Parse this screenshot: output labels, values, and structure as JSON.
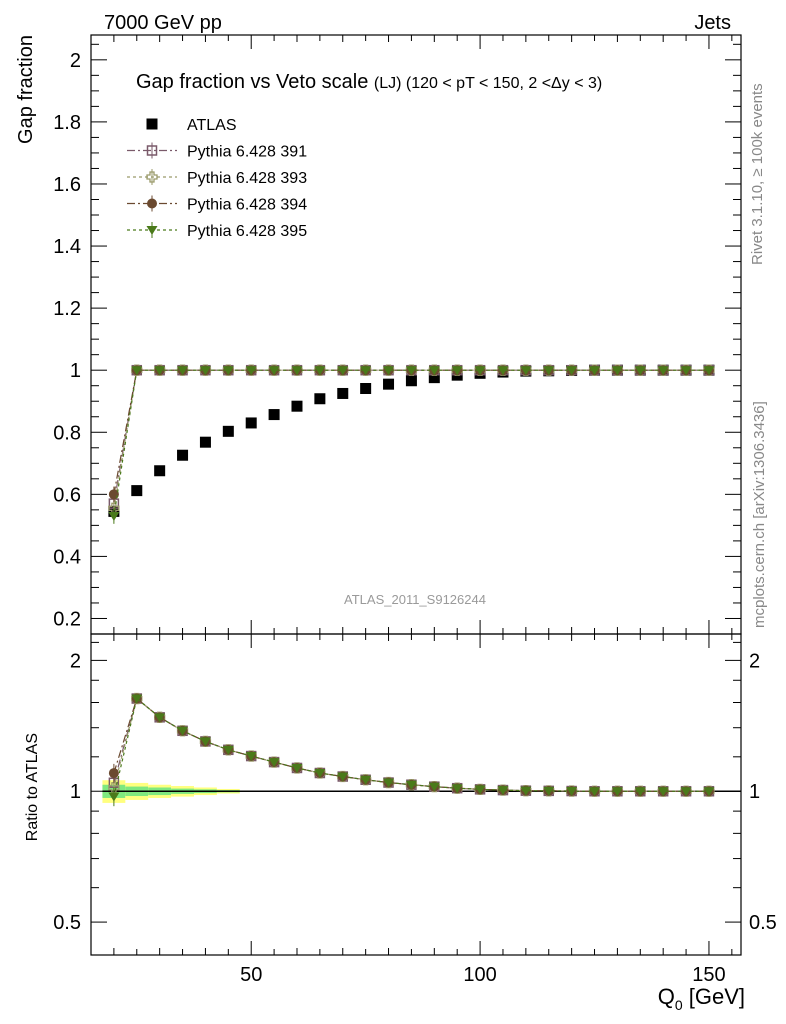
{
  "header": {
    "left": "7000 GeV pp",
    "right": "Jets"
  },
  "side_texts": {
    "rivet": "Rivet 3.1.10, ≥ 100k events",
    "mcplots": "mcplots.cern.ch [arXiv:1306.3436]"
  },
  "chart_data": {
    "type": "scatter",
    "title": "Gap fraction vs Veto scale",
    "title_suffix": "(LJ) (120 < pT < 150, 2 <Δy < 3)",
    "watermark": "ATLAS_2011_S9126244",
    "xlabel": "Q",
    "xlabel_sub": "0",
    "xlabel_unit": " [GeV]",
    "ylabel": "Gap fraction",
    "ratio_ylabel": "Ratio to ATLAS",
    "xlim": [
      15,
      157
    ],
    "ylim": [
      0.15,
      2.08
    ],
    "ratio_ylim": [
      0.42,
      2.3
    ],
    "x_ticks": [
      50,
      100,
      150
    ],
    "x_tick_labels": [
      "50",
      "100",
      "150"
    ],
    "y_ticks": [
      0.2,
      0.4,
      0.6,
      0.8,
      1,
      1.2,
      1.4,
      1.6,
      1.8,
      2
    ],
    "y_tick_labels": [
      "0.2",
      "0.4",
      "0.6",
      "0.8",
      "1",
      "1.2",
      "1.4",
      "1.6",
      "1.8",
      "2"
    ],
    "ratio_y_ticks": [
      0.5,
      1,
      2
    ],
    "ratio_y_tick_labels": [
      "0.5",
      "1",
      "2"
    ],
    "x": [
      20,
      25,
      30,
      35,
      40,
      45,
      50,
      55,
      60,
      65,
      70,
      75,
      80,
      85,
      90,
      95,
      100,
      105,
      110,
      115,
      120,
      125,
      130,
      135,
      140,
      145,
      150
    ],
    "atlas": [
      0.545,
      0.612,
      0.676,
      0.726,
      0.768,
      0.803,
      0.83,
      0.857,
      0.884,
      0.908,
      0.925,
      0.941,
      0.955,
      0.966,
      0.976,
      0.984,
      0.99,
      0.994,
      0.997,
      0.998,
      0.999,
      1.0,
      1.0,
      1.0,
      1.0,
      1.0,
      1.0
    ],
    "series": [
      {
        "name": "ATLAS",
        "color": "#000000",
        "marker": "square-filled"
      },
      {
        "name": "Pythia 6.428 391",
        "color": "#7a5a6a",
        "marker": "square-open",
        "dash": "8,3,2,3",
        "values": [
          0.57,
          1.0,
          1.0,
          1.0,
          1.0,
          1.0,
          1.0,
          1.0,
          1.0,
          1.0,
          1.0,
          1.0,
          1.0,
          1.0,
          1.0,
          1.0,
          1.0,
          1.0,
          1.0,
          1.0,
          1.0,
          1.0,
          1.0,
          1.0,
          1.0,
          1.0,
          1.0
        ]
      },
      {
        "name": "Pythia 6.428 393",
        "color": "#9a9a6a",
        "marker": "cross-open",
        "dash": "3,3",
        "values": [
          0.555,
          1.0,
          1.0,
          1.0,
          1.0,
          1.0,
          1.0,
          1.0,
          1.0,
          1.0,
          1.0,
          1.0,
          1.0,
          1.0,
          1.0,
          1.0,
          1.0,
          1.0,
          1.0,
          1.0,
          1.0,
          1.0,
          1.0,
          1.0,
          1.0,
          1.0,
          1.0
        ]
      },
      {
        "name": "Pythia 6.428 394",
        "color": "#6b4a30",
        "marker": "circle-filled",
        "dash": "8,3,2,3",
        "values": [
          0.6,
          1.0,
          1.0,
          1.0,
          1.0,
          1.0,
          1.0,
          1.0,
          1.0,
          1.0,
          1.0,
          1.0,
          1.0,
          1.0,
          1.0,
          1.0,
          1.0,
          1.0,
          1.0,
          1.0,
          1.0,
          1.0,
          1.0,
          1.0,
          1.0,
          1.0,
          1.0
        ]
      },
      {
        "name": "Pythia 6.428 395",
        "color": "#4a7a1a",
        "marker": "triangle-down-filled",
        "dash": "3,3",
        "values": [
          0.53,
          1.0,
          1.0,
          1.0,
          1.0,
          1.0,
          1.0,
          1.0,
          1.0,
          1.0,
          1.0,
          1.0,
          1.0,
          1.0,
          1.0,
          1.0,
          1.0,
          1.0,
          1.0,
          1.0,
          1.0,
          1.0,
          1.0,
          1.0,
          1.0,
          1.0,
          1.0
        ]
      }
    ],
    "grid": false,
    "legend_position": "top-left",
    "band_colors": {
      "inner": "#7fe87f",
      "outer": "#ffff7f"
    }
  }
}
